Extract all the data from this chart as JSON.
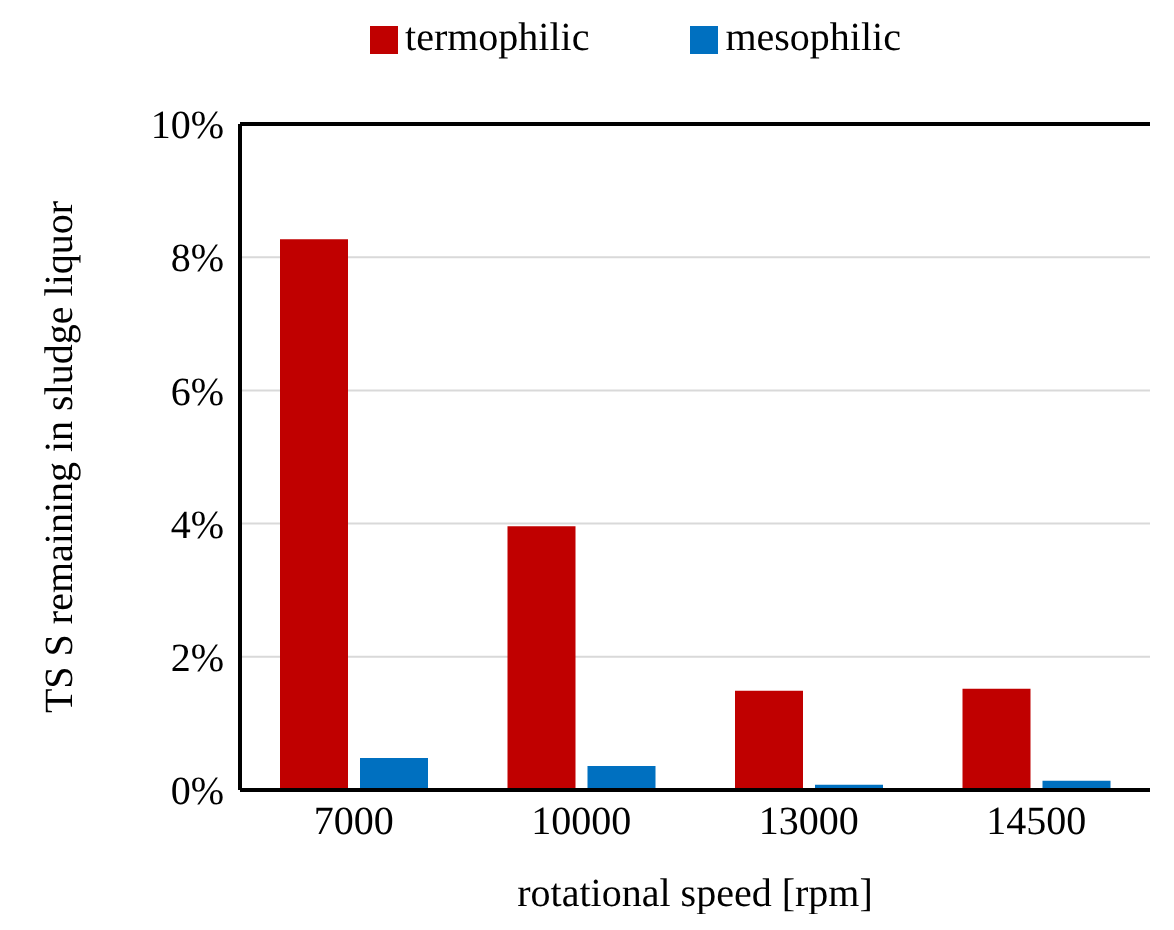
{
  "chart_data": {
    "type": "bar",
    "xlabel": "rotational speed [rpm]",
    "ylabel": "TS S remaining  in sludge liquor",
    "categories": [
      "7000",
      "10000",
      "13000",
      "14500"
    ],
    "series": [
      {
        "name": "termophilic",
        "color": "#c00000",
        "values": [
          8.27,
          3.96,
          1.49,
          1.52
        ]
      },
      {
        "name": "mesophilic",
        "color": "#0070c0",
        "values": [
          0.48,
          0.36,
          0.08,
          0.14
        ]
      }
    ],
    "ylim": [
      0,
      10
    ],
    "yticks": [
      {
        "value": 0,
        "label": "0%"
      },
      {
        "value": 2,
        "label": "2%"
      },
      {
        "value": 4,
        "label": "4%"
      },
      {
        "value": 6,
        "label": "6%"
      },
      {
        "value": 8,
        "label": "8%"
      },
      {
        "value": 10,
        "label": "10%"
      }
    ],
    "grid": "y",
    "legend": "top"
  }
}
